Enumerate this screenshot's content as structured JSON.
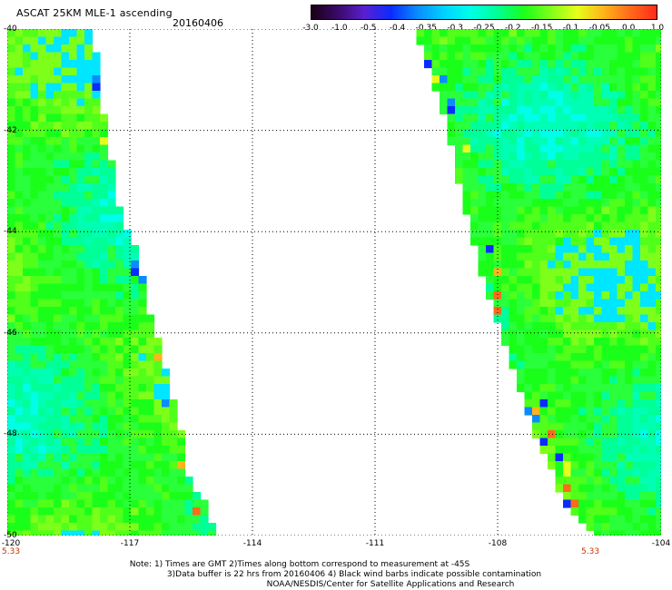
{
  "header": {
    "title": "ASCAT 25KM MLE-1 ascending",
    "date": "20160406"
  },
  "colorbar": {
    "labels": [
      "-3.0",
      "-1.0",
      "-0.5",
      "-0.4",
      "-0.35",
      "-0.3",
      "-0.25",
      "-0.2",
      "-0.15",
      "-0.1",
      "-0.05",
      "0.0",
      "1.0"
    ],
    "colors": [
      "#1a0014",
      "#3a0a6a",
      "#5a1fd0",
      "#0a2cff",
      "#0a8cff",
      "#00d2ff",
      "#00ffe6",
      "#00ff96",
      "#1aff1a",
      "#7dff1a",
      "#e6ff1a",
      "#ffb41a",
      "#ff6a1a",
      "#ff2a1a"
    ]
  },
  "map": {
    "lon_ticks": [
      "-120",
      "-117",
      "-114",
      "-111",
      "-108",
      "-104"
    ],
    "lat_ticks": [
      "-40",
      "-42",
      "-44",
      "-46",
      "-48",
      "-50"
    ],
    "lon_range": [
      -120,
      -104
    ],
    "lat_range": [
      -40,
      -50
    ],
    "swaths": [
      {
        "name": "west",
        "edge_left": [
          [
            -40,
            -120
          ],
          [
            -50,
            -120
          ]
        ],
        "edge_right": [
          [
            -40,
            -118
          ],
          [
            -41.2,
            -117.8
          ],
          [
            -42.4,
            -117.6
          ],
          [
            -43.8,
            -117.3
          ],
          [
            -44.4,
            -116.9
          ],
          [
            -45.6,
            -116.6
          ],
          [
            -46.8,
            -116.2
          ],
          [
            -47.6,
            -115.9
          ],
          [
            -48.8,
            -115.7
          ],
          [
            -49.3,
            -115.3
          ],
          [
            -50,
            -115
          ]
        ]
      },
      {
        "name": "east",
        "edge_left": [
          [
            -40,
            -109.9
          ],
          [
            -41.2,
            -109.4
          ],
          [
            -42.4,
            -109
          ],
          [
            -43.6,
            -108.7
          ],
          [
            -44.8,
            -108.3
          ],
          [
            -46,
            -107.8
          ],
          [
            -47.2,
            -107.3
          ],
          [
            -48.4,
            -106.8
          ],
          [
            -49.4,
            -106.2
          ],
          [
            -50,
            -105.6
          ]
        ],
        "edge_right": [
          [
            -40,
            -104
          ],
          [
            -50,
            -104
          ]
        ]
      }
    ],
    "field_colors": [
      "#00ffe6",
      "#00ffb4",
      "#00ff96",
      "#2aff3c",
      "#1aff1a",
      "#50ff1a",
      "#7dff1a",
      "#00e6ff"
    ],
    "outlier_colors": [
      "#0a2cff",
      "#0a8cff",
      "#ff6a1a",
      "#ffb41a",
      "#e6ff1a"
    ],
    "time_labels": [
      "5.33",
      "5.33"
    ]
  },
  "notes": [
    "Note: 1) Times are GMT 2)Times along bottom correspond to measurement at -45S",
    "3)Data buffer is 22 hrs from 20160406 4) Black wind barbs indicate possible contamination",
    "NOAA/NESDIS/Center for Satellite Applications and Research"
  ]
}
